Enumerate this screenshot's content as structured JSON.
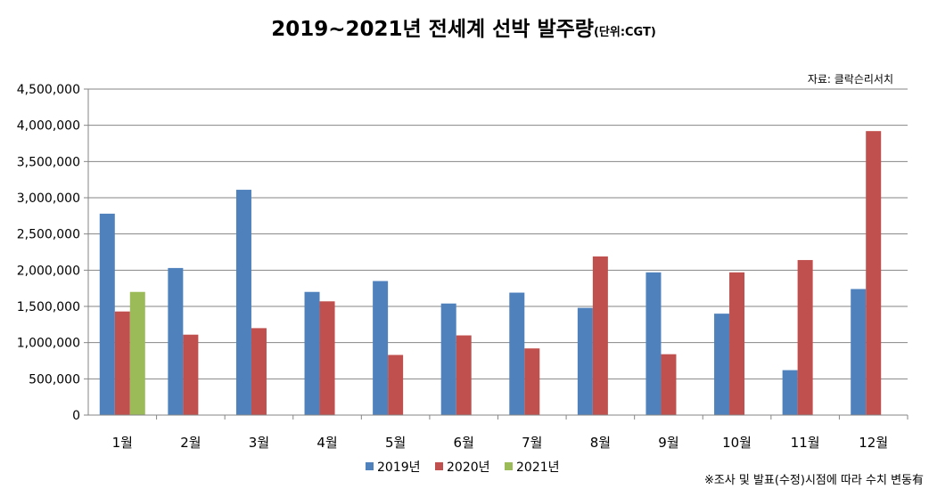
{
  "chart_data": {
    "type": "bar",
    "title": "2019~2021년 전세계 선박 발주량",
    "title_unit": "(단위:CGT)",
    "source": "자료: 클락슨리서치",
    "note": "※조사 및 발표(수정)시점에 따라 수치 변동有",
    "categories": [
      "1월",
      "2월",
      "3월",
      "4월",
      "5월",
      "6월",
      "7월",
      "8월",
      "9월",
      "10월",
      "11월",
      "12월"
    ],
    "ylim": [
      0,
      4500000
    ],
    "yticks": [
      0,
      500000,
      1000000,
      1500000,
      2000000,
      2500000,
      3000000,
      3500000,
      4000000,
      4500000
    ],
    "ytick_labels": [
      "0",
      "500,000",
      "1,000,000",
      "1,500,000",
      "2,000,000",
      "2,500,000",
      "3,000,000",
      "3,500,000",
      "4,000,000",
      "4,500,000"
    ],
    "grid": true,
    "legend_position": "bottom",
    "series": [
      {
        "name": "2019년",
        "color": "#4f81bd",
        "values": [
          2780000,
          2030000,
          3110000,
          1700000,
          1850000,
          1540000,
          1690000,
          1480000,
          1970000,
          1400000,
          620000,
          1740000
        ]
      },
      {
        "name": "2020년",
        "color": "#c0504d",
        "values": [
          1430000,
          1110000,
          1200000,
          1570000,
          830000,
          1100000,
          920000,
          2190000,
          840000,
          1970000,
          2140000,
          3920000
        ]
      },
      {
        "name": "2021년",
        "color": "#9bbb59",
        "values": [
          1700000,
          null,
          null,
          null,
          null,
          null,
          null,
          null,
          null,
          null,
          null,
          null
        ]
      }
    ]
  }
}
